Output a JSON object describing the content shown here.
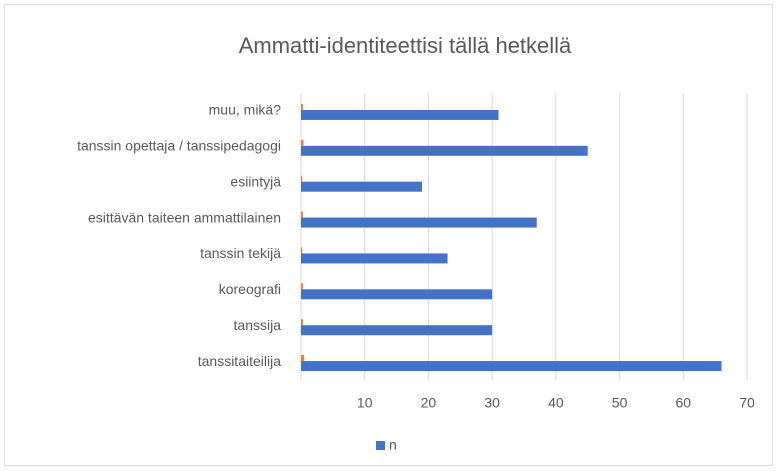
{
  "chart_data": {
    "type": "bar",
    "orientation": "horizontal",
    "title": "Ammatti-identiteettisi tällä hetkellä",
    "categories": [
      "muu, mikä?",
      "tanssin opettaja / tanssipedagogi",
      "esiintyjä",
      "esittävän taiteen ammattilainen",
      "tanssin tekijä",
      "koreografi",
      "tanssija",
      "tanssitaiteilija"
    ],
    "series": [
      {
        "color": "#ed7d31",
        "values": [
          0.3,
          0.4,
          0.2,
          0.3,
          0.2,
          0.3,
          0.3,
          0.5
        ]
      },
      {
        "name": "n",
        "color": "#4472c4",
        "values": [
          31,
          45,
          19,
          37,
          23,
          30,
          30,
          66
        ]
      }
    ],
    "xlim": [
      0,
      70
    ],
    "xticks": [
      10,
      20,
      30,
      40,
      50,
      60,
      70
    ],
    "grid": true,
    "legend": "bottom"
  }
}
